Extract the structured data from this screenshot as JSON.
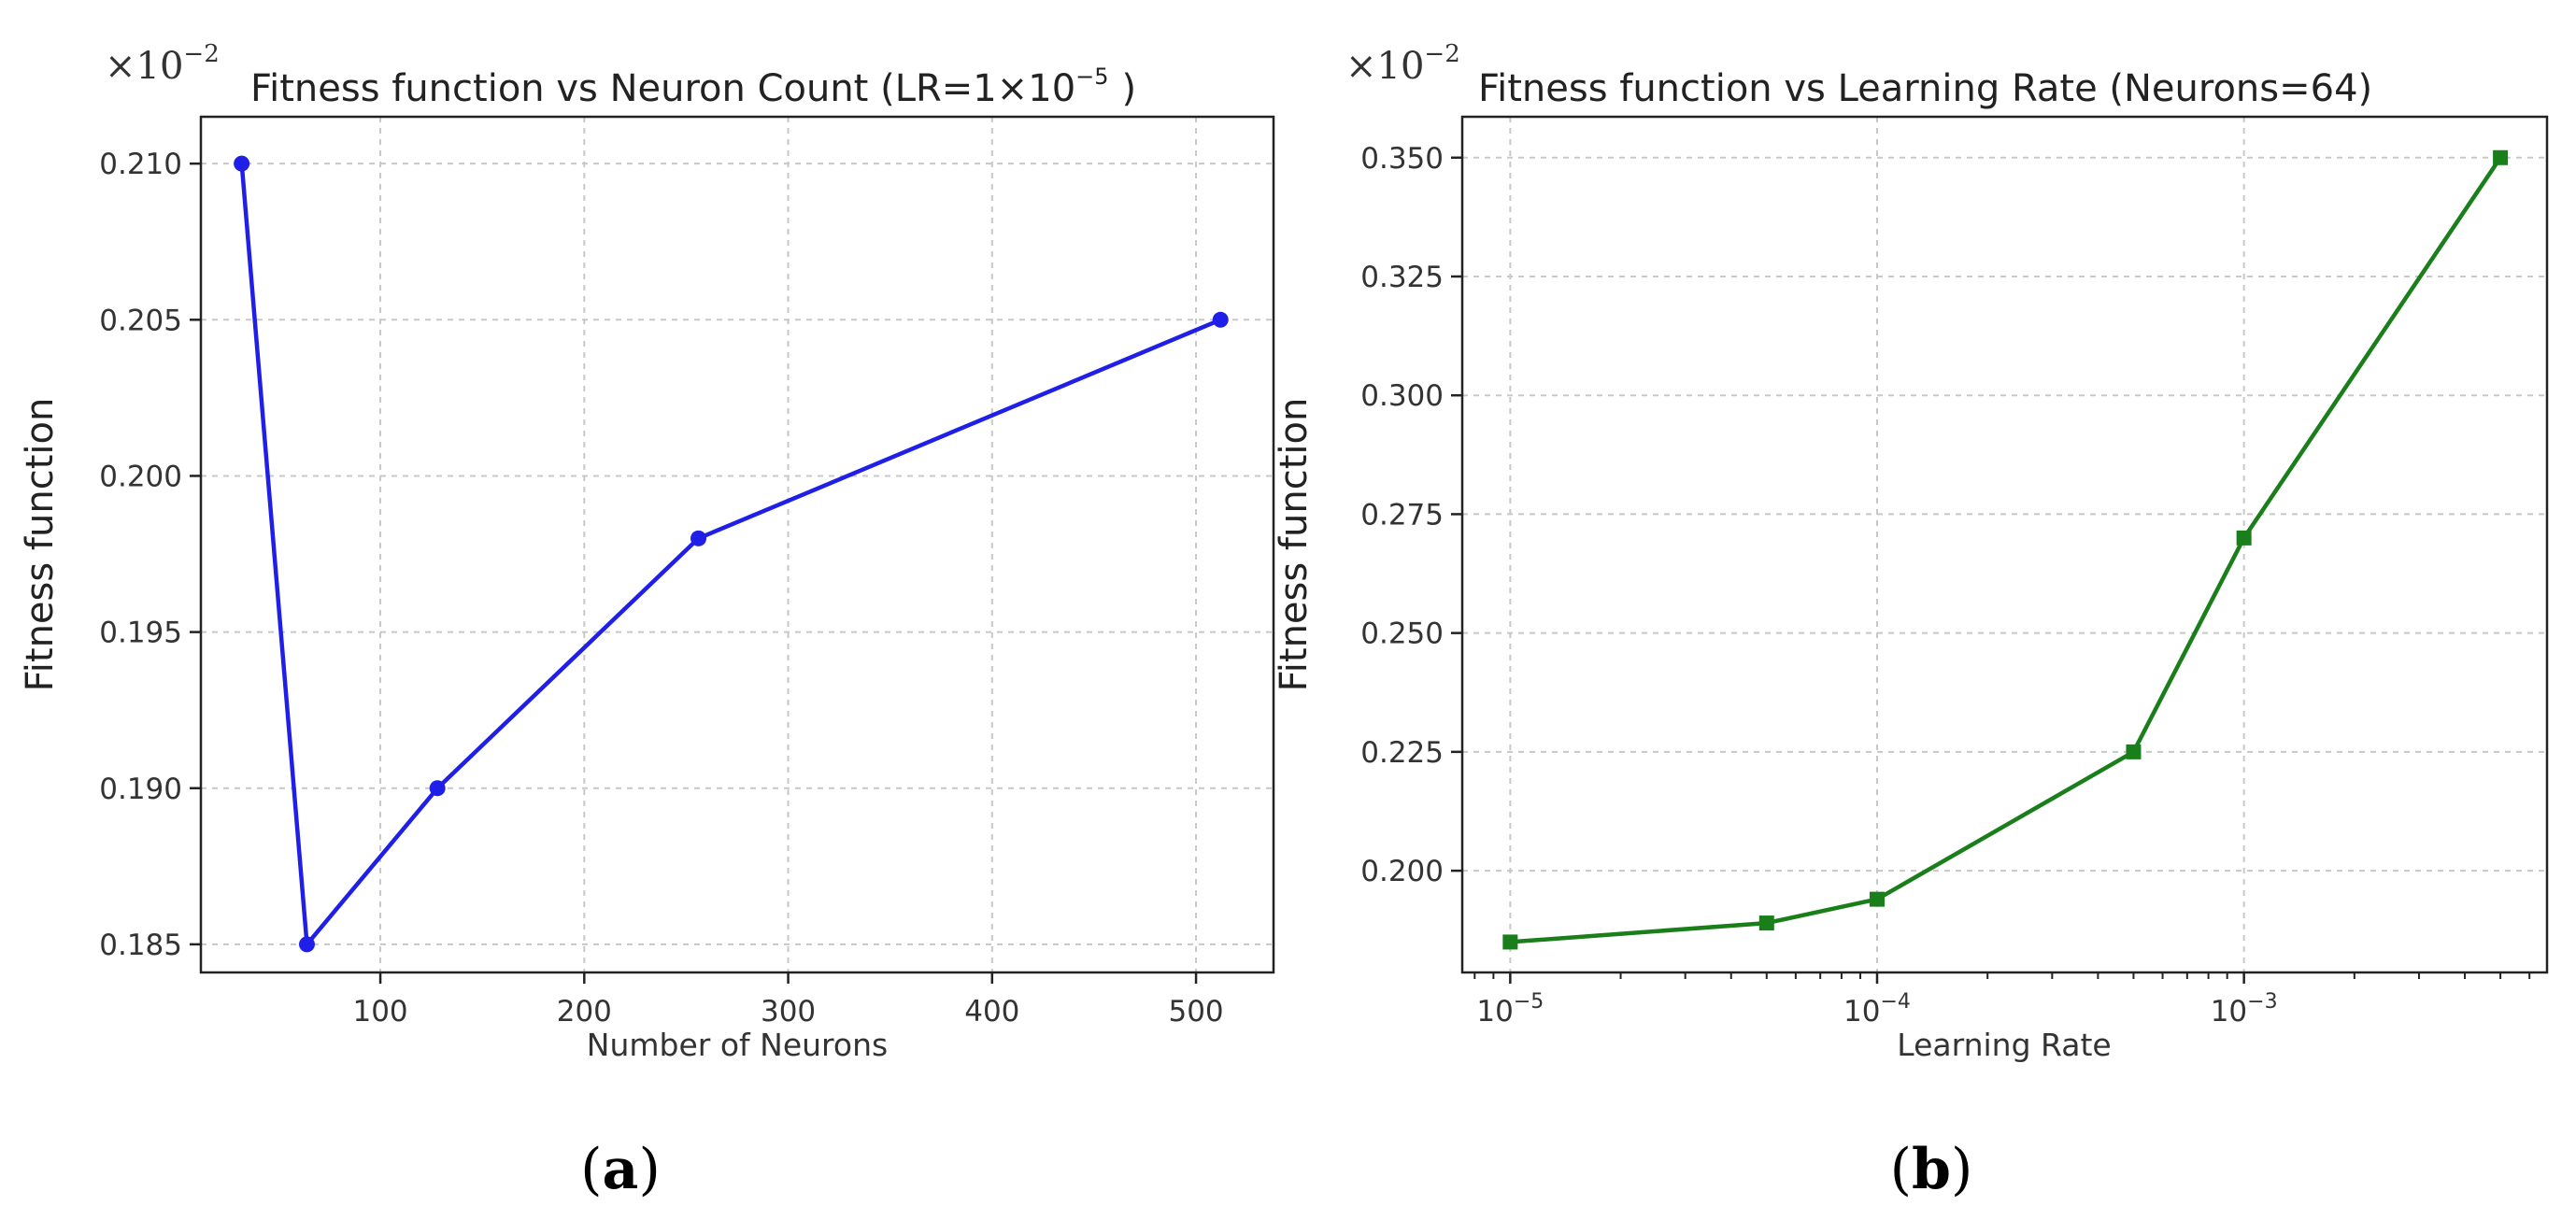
{
  "chart_data": [
    {
      "type": "line",
      "title": "Fitness function vs Neuron Count (LR=1×10",
      "title_exp": "−5",
      "title_close": ")",
      "multiplier": "×10",
      "multiplier_exp": "−2",
      "xlabel": "Number of Neurons",
      "ylabel": "Fitness function",
      "xscale": "linear",
      "xlim": [
        12,
        538
      ],
      "ylim": [
        0.1841,
        0.2115
      ],
      "xticks": [
        100,
        200,
        300,
        400,
        500
      ],
      "xtick_labels": [
        "100",
        "200",
        "300",
        "400",
        "500"
      ],
      "yticks": [
        0.185,
        0.19,
        0.195,
        0.2,
        0.205,
        0.21
      ],
      "ytick_labels": [
        "0.185",
        "0.190",
        "0.195",
        "0.200",
        "0.205",
        "0.210"
      ],
      "grid": true,
      "series": [
        {
          "color": "#1f1fe8",
          "marker": "circle",
          "x": [
            32,
            64,
            128,
            256,
            512
          ],
          "y": [
            0.21,
            0.185,
            0.19,
            0.198,
            0.205
          ]
        }
      ],
      "panel_label": "a"
    },
    {
      "type": "line",
      "title": "Fitness function vs Learning Rate (Neurons=64)",
      "multiplier": "×10",
      "multiplier_exp": "−2",
      "xlabel": "Learning Rate",
      "ylabel": "Fitness function",
      "xscale": "log",
      "xlim": [
        7.4e-06,
        0.0067
      ],
      "ylim": [
        0.1786,
        0.3586
      ],
      "xticks": [
        1e-05,
        0.0001,
        0.001
      ],
      "xtick_base": "10",
      "xtick_exps": [
        "−5",
        "−4",
        "−3"
      ],
      "yticks": [
        0.2,
        0.225,
        0.25,
        0.275,
        0.3,
        0.325,
        0.35
      ],
      "ytick_labels": [
        "0.200",
        "0.225",
        "0.250",
        "0.275",
        "0.300",
        "0.325",
        "0.350"
      ],
      "grid": true,
      "series": [
        {
          "color": "#1a7f1a",
          "marker": "square",
          "x": [
            1e-05,
            5e-05,
            0.0001,
            0.0005,
            0.001,
            0.005
          ],
          "y": [
            0.185,
            0.189,
            0.194,
            0.225,
            0.27,
            0.35
          ]
        }
      ],
      "panel_label": "b"
    }
  ]
}
